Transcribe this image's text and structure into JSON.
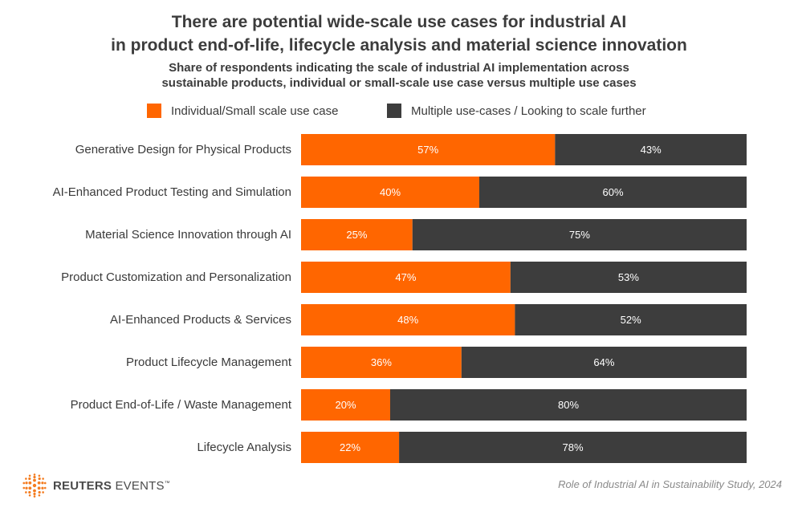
{
  "header": {
    "title_line1": "There are potential wide-scale use cases for industrial AI",
    "title_line2": "in product end-of-life, lifecycle analysis and material science innovation",
    "subtitle_line1": "Share of respondents indicating the scale of industrial AI implementation across",
    "subtitle_line2": "sustainable products, individual or small-scale use case versus multiple use cases"
  },
  "legend": {
    "individual": "Individual/Small scale use case",
    "multiple": "Multiple use-cases / Looking to scale further"
  },
  "colors": {
    "individual": "#ff6600",
    "multiple": "#3d3d3d",
    "logo": "#f47c20"
  },
  "chart_data": {
    "type": "bar",
    "orientation": "horizontal",
    "stacked": "100%",
    "categories": [
      "Generative Design for Physical Products",
      "AI-Enhanced Product Testing and Simulation",
      "Material Science Innovation through AI",
      "Product Customization and Personalization",
      "AI-Enhanced Products & Services",
      "Product Lifecycle Management",
      "Product End-of-Life / Waste Management",
      "Lifecycle Analysis"
    ],
    "series": [
      {
        "name": "Individual/Small scale use case",
        "values": [
          57,
          40,
          25,
          47,
          48,
          36,
          20,
          22
        ]
      },
      {
        "name": "Multiple use-cases / Looking to scale further",
        "values": [
          43,
          60,
          75,
          53,
          52,
          64,
          80,
          78
        ]
      }
    ],
    "value_suffix": "%",
    "title": "There are potential wide-scale use cases for industrial AI in product end-of-life, lifecycle analysis and material science innovation",
    "subtitle": "Share of respondents indicating the scale of industrial AI implementation across sustainable products, individual or small-scale use case versus multiple use cases",
    "legend_position": "top",
    "grid": false
  },
  "footer": {
    "logo_brand": "REUTERS",
    "logo_product": "EVENTS",
    "logo_tm": "™",
    "source": "Role of Industrial AI in Sustainability Study, 2024"
  }
}
